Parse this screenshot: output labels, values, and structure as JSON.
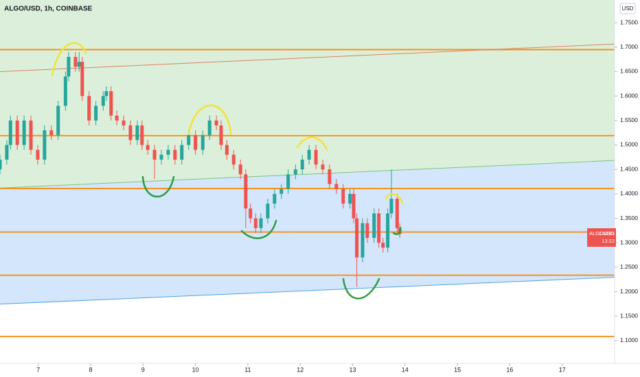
{
  "chart_data": {
    "type": "candlestick",
    "title": "ALGO/USD, 1h, COINBASE",
    "currency": "USD",
    "symbol": "ALGOUSD",
    "countdown": "13:22",
    "up_color": "#26a69a",
    "down_color": "#ef5350",
    "x": [
      6.27,
      6.4,
      6.47,
      6.6,
      6.73,
      6.86,
      6.99,
      7.12,
      7.25,
      7.38,
      7.52,
      7.58,
      7.71,
      7.78,
      7.84,
      7.97,
      8.1,
      8.24,
      8.3,
      8.39,
      8.5,
      8.63,
      8.76,
      8.89,
      8.98,
      9.09,
      9.22,
      9.35,
      9.48,
      9.61,
      9.74,
      9.87,
      10.0,
      10.14,
      10.27,
      10.4,
      10.49,
      10.6,
      10.73,
      10.86,
      10.96,
      11.05,
      11.15,
      11.25,
      11.38,
      11.51,
      11.64,
      11.77,
      11.91,
      12.04,
      12.17,
      12.3,
      12.43,
      12.56,
      12.69,
      12.82,
      12.95,
      13.02,
      13.08,
      13.19,
      13.28,
      13.41,
      13.5,
      13.58,
      13.67,
      13.74,
      13.85,
      13.9
    ],
    "open": [
      1.45,
      1.47,
      1.5,
      1.55,
      1.5,
      1.55,
      1.49,
      1.47,
      1.53,
      1.52,
      1.58,
      1.64,
      1.68,
      1.66,
      1.67,
      1.6,
      1.55,
      1.58,
      1.6,
      1.61,
      1.56,
      1.55,
      1.54,
      1.51,
      1.54,
      1.5,
      1.49,
      1.47,
      1.48,
      1.49,
      1.47,
      1.5,
      1.52,
      1.49,
      1.52,
      1.55,
      1.54,
      1.5,
      1.48,
      1.46,
      1.44,
      1.37,
      1.35,
      1.33,
      1.35,
      1.38,
      1.4,
      1.41,
      1.44,
      1.45,
      1.47,
      1.49,
      1.46,
      1.45,
      1.42,
      1.41,
      1.38,
      1.4,
      1.35,
      1.27,
      1.34,
      1.31,
      1.36,
      1.3,
      1.29,
      1.36,
      1.39,
      1.33
    ],
    "high": [
      1.48,
      1.51,
      1.56,
      1.56,
      1.56,
      1.56,
      1.5,
      1.54,
      1.54,
      1.59,
      1.65,
      1.69,
      1.69,
      1.69,
      1.68,
      1.61,
      1.59,
      1.61,
      1.62,
      1.62,
      1.57,
      1.56,
      1.55,
      1.55,
      1.55,
      1.51,
      1.5,
      1.49,
      1.5,
      1.5,
      1.51,
      1.53,
      1.53,
      1.53,
      1.56,
      1.56,
      1.55,
      1.51,
      1.49,
      1.47,
      1.45,
      1.38,
      1.36,
      1.36,
      1.39,
      1.41,
      1.42,
      1.45,
      1.46,
      1.48,
      1.5,
      1.5,
      1.47,
      1.46,
      1.43,
      1.42,
      1.41,
      1.41,
      1.36,
      1.35,
      1.35,
      1.37,
      1.37,
      1.31,
      1.37,
      1.45,
      1.4,
      1.34
    ],
    "low": [
      1.44,
      1.46,
      1.49,
      1.49,
      1.49,
      1.48,
      1.46,
      1.46,
      1.51,
      1.51,
      1.57,
      1.63,
      1.65,
      1.65,
      1.59,
      1.54,
      1.54,
      1.57,
      1.59,
      1.55,
      1.54,
      1.53,
      1.5,
      1.5,
      1.49,
      1.48,
      1.43,
      1.46,
      1.47,
      1.46,
      1.46,
      1.49,
      1.48,
      1.48,
      1.51,
      1.53,
      1.49,
      1.47,
      1.45,
      1.43,
      1.33,
      1.34,
      1.32,
      1.32,
      1.34,
      1.37,
      1.39,
      1.4,
      1.43,
      1.44,
      1.46,
      1.45,
      1.44,
      1.41,
      1.4,
      1.37,
      1.37,
      1.34,
      1.21,
      1.26,
      1.3,
      1.3,
      1.29,
      1.28,
      1.28,
      1.35,
      1.32,
      1.31
    ],
    "close": [
      1.47,
      1.5,
      1.55,
      1.5,
      1.55,
      1.49,
      1.47,
      1.53,
      1.52,
      1.58,
      1.64,
      1.68,
      1.66,
      1.67,
      1.6,
      1.55,
      1.58,
      1.6,
      1.61,
      1.56,
      1.55,
      1.54,
      1.51,
      1.54,
      1.5,
      1.49,
      1.47,
      1.48,
      1.49,
      1.47,
      1.5,
      1.52,
      1.49,
      1.52,
      1.55,
      1.54,
      1.5,
      1.48,
      1.46,
      1.44,
      1.37,
      1.35,
      1.33,
      1.35,
      1.38,
      1.4,
      1.41,
      1.44,
      1.45,
      1.47,
      1.49,
      1.46,
      1.45,
      1.42,
      1.41,
      1.38,
      1.4,
      1.35,
      1.27,
      1.34,
      1.31,
      1.36,
      1.3,
      1.29,
      1.36,
      1.39,
      1.33,
      1.3181
    ],
    "xlim": [
      6.27,
      18.0
    ],
    "xticks": [
      7,
      8,
      9,
      10,
      11,
      12,
      13,
      14,
      15,
      16,
      17
    ],
    "ylim": [
      1.0536,
      1.7964
    ],
    "yticks": [
      {
        "value": 1.75,
        "label": "1.7500"
      },
      {
        "value": 1.7,
        "label": "1.7000"
      },
      {
        "value": 1.65,
        "label": "1.6500"
      },
      {
        "value": 1.6,
        "label": "1.6000"
      },
      {
        "value": 1.55,
        "label": "1.5500"
      },
      {
        "value": 1.5,
        "label": "1.5000"
      },
      {
        "value": 1.45,
        "label": "1.4500"
      },
      {
        "value": 1.4,
        "label": "1.4000"
      },
      {
        "value": 1.35,
        "label": "1.3500"
      },
      {
        "value": 1.3,
        "label": "1.3000"
      },
      {
        "value": 1.25,
        "label": "1.2500"
      },
      {
        "value": 1.2,
        "label": "1.2000"
      },
      {
        "value": 1.15,
        "label": "1.1500"
      },
      {
        "value": 1.1,
        "label": "1.1000"
      }
    ],
    "zones": [
      {
        "color": "#dcefdb",
        "points": [
          [
            6.27,
            1.7964
          ],
          [
            18.0,
            1.7964
          ],
          [
            18.0,
            1.4684
          ],
          [
            6.27,
            1.4121
          ]
        ]
      },
      {
        "color": "#d3e6fb",
        "points": [
          [
            6.27,
            1.4121
          ],
          [
            18.0,
            1.4684
          ],
          [
            18.0,
            1.2295
          ],
          [
            6.27,
            1.1746
          ]
        ]
      }
    ],
    "levels": [
      1.695,
      1.519,
      1.411,
      1.322,
      1.2337,
      1.1085
    ],
    "level_color": "#f7931e",
    "trendlines": [
      {
        "from": [
          6.27,
          1.65
        ],
        "to": [
          18.0,
          1.7064
        ],
        "color": "#d9835e"
      },
      {
        "from": [
          6.27,
          1.4121
        ],
        "to": [
          18.0,
          1.4684
        ],
        "color": "#7cc47f"
      },
      {
        "from": [
          6.27,
          1.1746
        ],
        "to": [
          18.0,
          1.2295
        ],
        "color": "#4ea1e0"
      }
    ]
  }
}
